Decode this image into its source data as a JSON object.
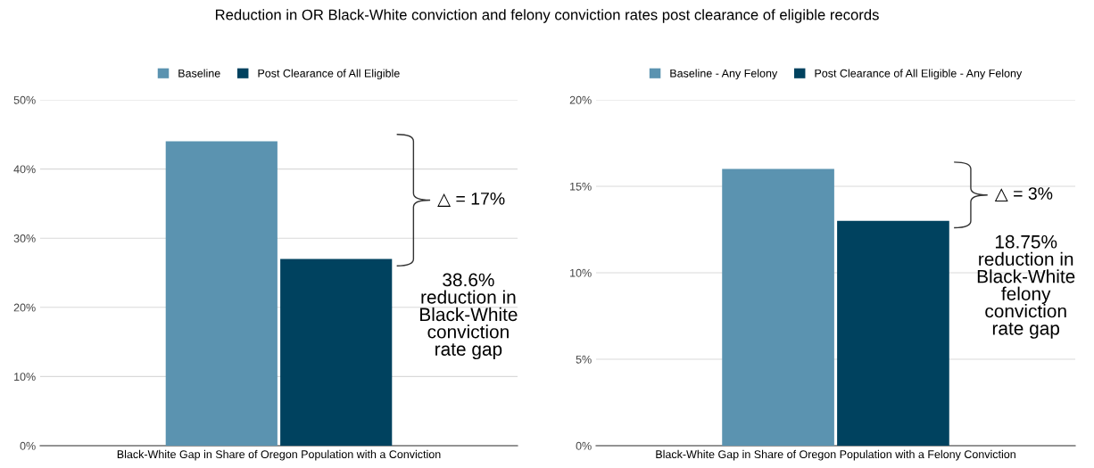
{
  "chart_data": [
    {
      "type": "bar",
      "title": "Reduction in OR Black-White conviction and felony conviction rates post clearance of eligible records",
      "categories": [
        "Black-White Gap in Share of Oregon Population with a Conviction"
      ],
      "series": [
        {
          "name": "Baseline",
          "color": "#5b93b0",
          "values": [
            44
          ]
        },
        {
          "name": "Post Clearance of All Eligible",
          "color": "#00425f",
          "values": [
            27
          ]
        }
      ],
      "ylim": [
        0,
        50
      ],
      "yticks": [
        {
          "value": 0,
          "label": "0%"
        },
        {
          "value": 10,
          "label": "10%"
        },
        {
          "value": 20,
          "label": "20%"
        },
        {
          "value": 30,
          "label": "30%"
        },
        {
          "value": 40,
          "label": "40%"
        },
        {
          "value": 50,
          "label": "50%"
        }
      ],
      "grid": "y",
      "legend": "top",
      "annotations": [
        "△ = 17%",
        "38.6%\nreduction in\nBlack-White\nconviction\nrate gap"
      ]
    },
    {
      "type": "bar",
      "categories": [
        "Black-White Gap in Share of Oregon Population with a Felony Conviction"
      ],
      "series": [
        {
          "name": "Baseline - Any Felony",
          "color": "#5b93b0",
          "values": [
            16
          ]
        },
        {
          "name": "Post Clearance of All Eligible - Any Felony",
          "color": "#00425f",
          "values": [
            13
          ]
        }
      ],
      "ylim": [
        0,
        20
      ],
      "yticks": [
        {
          "value": 0,
          "label": "0%"
        },
        {
          "value": 5,
          "label": "5%"
        },
        {
          "value": 10,
          "label": "10%"
        },
        {
          "value": 15,
          "label": "15%"
        },
        {
          "value": 20,
          "label": "20%"
        }
      ],
      "grid": "y",
      "legend": "top",
      "annotations": [
        "△ = 3%",
        "18.75%\nreduction in\nBlack-White\nfelony\nconviction\nrate gap"
      ]
    }
  ]
}
